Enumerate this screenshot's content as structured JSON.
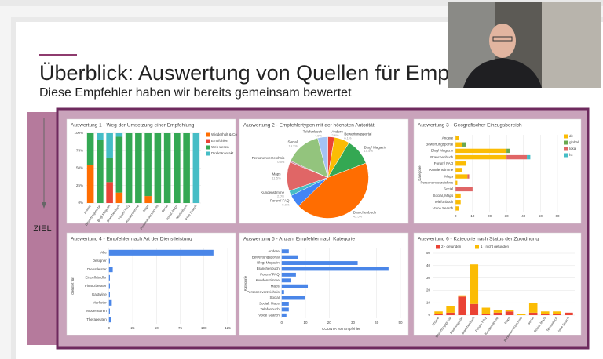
{
  "slide": {
    "title": "Überblick: Auswertung von Quellen für Empfehler",
    "subtitle": "Diese Empfehler haben wir bereits gemeinsam bewertet",
    "side_label": "ZIEL"
  },
  "chart_data": [
    {
      "type": "bar",
      "orientation": "vertical",
      "stacked": true,
      "legend": "right",
      "grid": true,
      "title": "Auswertung 1 - Weg der Umsetzung einer Empfehlung",
      "categories": [
        "Andere",
        "Bewertungsportal",
        "Blog/ Magazin",
        "Branchenbuch",
        "Forum/ FAQ",
        "Kundenstimme",
        "Maps",
        "Personenverzeichnis",
        "Social",
        "Social, Maps",
        "Telefonbuch",
        "Voice Search"
      ],
      "series": [
        {
          "name": "Wiederholt & Co",
          "color": "#ff6d01",
          "values": [
            55,
            0,
            0,
            15,
            0,
            0,
            10,
            0,
            0,
            0,
            0,
            0
          ]
        },
        {
          "name": "Empfohlen",
          "color": "#ea4335",
          "values": [
            0,
            0,
            30,
            0,
            0,
            0,
            0,
            0,
            0,
            0,
            0,
            0
          ]
        },
        {
          "name": "Web Lesen",
          "color": "#34a853",
          "values": [
            45,
            90,
            35,
            80,
            100,
            100,
            90,
            100,
            100,
            100,
            100,
            0
          ]
        },
        {
          "name": "Direkt Kontakt",
          "color": "#46bdc6",
          "values": [
            0,
            10,
            35,
            5,
            0,
            0,
            0,
            0,
            0,
            0,
            0,
            100
          ]
        }
      ],
      "ylim": [
        0,
        100
      ],
      "yticks": [
        {
          "value": 0,
          "label": "0%"
        },
        {
          "value": 25,
          "label": "25%"
        },
        {
          "value": 50,
          "label": "50%"
        },
        {
          "value": 75,
          "label": "75%"
        },
        {
          "value": 100,
          "label": "100%"
        }
      ]
    },
    {
      "type": "pie",
      "title": "Auswertung 2 - Empfehlertypen mit der höchsten Autorität",
      "categories": [
        "Andere",
        "Bewertungsportal",
        "Blog/ Magazin",
        "Branchenbuch",
        "Forum/ FAQ",
        "Kundenstimme",
        "Maps",
        "Personenverzeichnis",
        "Social",
        "Telefonbuch"
      ],
      "values": [
        2.6,
        6.1,
        10.5,
        43.5,
        5.0,
        2.0,
        11.5,
        0.5,
        14.3,
        4.0
      ],
      "value_labels": [
        "2.6%",
        "6.1%",
        "10.5%",
        "43.5%",
        "5.0%",
        "2.0%",
        "11.5%",
        "0.5%",
        "14.3%",
        "4.0%"
      ],
      "colors": [
        "#ea4335",
        "#fbbc04",
        "#34a853",
        "#ff6d01",
        "#4285f4",
        "#46bdc6",
        "#e06666",
        "#c27ba0",
        "#93c47d",
        "#a4c2f4"
      ]
    },
    {
      "type": "bar",
      "orientation": "horizontal",
      "stacked": true,
      "legend": "right",
      "grid": true,
      "title": "Auswertung 3 - Geografischer Einzugsbereich",
      "ylabel": "Kategorie",
      "categories": [
        "Andere",
        "Bewertungsportal",
        "Blog/ Magazin",
        "Branchenbuch",
        "Forum/ FAQ",
        "Kundenstimme",
        "Maps",
        "Personenverzeichnis",
        "Social",
        "Social, Maps",
        "Telefonbuch",
        "Voice Search"
      ],
      "series": [
        {
          "name": "de",
          "color": "#fbbc04",
          "values": [
            2,
            4,
            30,
            30,
            6,
            4,
            7,
            1,
            0,
            3,
            3,
            2
          ]
        },
        {
          "name": "global",
          "color": "#6aa84f",
          "values": [
            0,
            2,
            2,
            0,
            0,
            0,
            0,
            0,
            0,
            0,
            0,
            0
          ]
        },
        {
          "name": "lokal",
          "color": "#e06666",
          "values": [
            0,
            0,
            0,
            12,
            0,
            0,
            1,
            0,
            10,
            0,
            0,
            0
          ]
        },
        {
          "name": "hz",
          "color": "#46bdc6",
          "values": [
            0,
            0,
            0,
            2,
            0,
            0,
            0,
            0,
            0,
            0,
            0,
            0
          ]
        }
      ],
      "xlim": [
        0,
        60
      ],
      "xticks": [
        0,
        10,
        20,
        30,
        40,
        50,
        60
      ]
    },
    {
      "type": "bar",
      "orientation": "horizontal",
      "grid": true,
      "color": "#4a86e8",
      "title": "Auswertung 4 - Empfehler nach Art der Dienstleistung",
      "ylabel": "Gelistet für",
      "categories": [
        "Alle",
        "Designer",
        "Dienstleister",
        "Einzelhändler",
        "Finanzberater",
        "Gastwirte",
        "Marketer",
        "Moderatoren",
        "Therapeuten"
      ],
      "values": [
        110,
        1,
        4,
        1,
        1,
        1,
        3,
        1,
        2
      ],
      "xlim": [
        0,
        125
      ],
      "xticks": [
        0,
        25,
        50,
        75,
        100,
        125
      ]
    },
    {
      "type": "bar",
      "orientation": "horizontal",
      "grid": true,
      "color": "#4a86e8",
      "title": "Auswertung 5 - Anzahl Empfehler nach Kategorie",
      "xlabel": "COUNTA von Empfehler",
      "ylabel": "Kategorie",
      "categories": [
        "Andere",
        "Bewertungsportal",
        "Blog/ Magazin",
        "Branchenbuch",
        "Forum/ FAQ",
        "Kundenstimme",
        "Maps",
        "Personenverzeichnis",
        "Social",
        "Social, Maps",
        "Telefonbuch",
        "Voice Search"
      ],
      "values": [
        3,
        7,
        32,
        45,
        6,
        4,
        11,
        1,
        10,
        3,
        3,
        2
      ],
      "xlim": [
        0,
        50
      ],
      "xticks": [
        0,
        10,
        20,
        30,
        40,
        50
      ]
    },
    {
      "type": "bar",
      "orientation": "vertical",
      "stacked": true,
      "legend": "top",
      "grid": true,
      "title": "Auswertung 6 - Kategorie nach Status der Zuordnung",
      "categories": [
        "Andere",
        "Bewertungsportal",
        "Blog/ Magazin",
        "Branchenbuch",
        "Forum/ FAQ",
        "Kundenstimme",
        "Maps",
        "Personenverzeichnis",
        "Social",
        "Social, Maps",
        "Telefonbuch",
        "Voice Search"
      ],
      "series": [
        {
          "name": "2 - gefunden",
          "color": "#ea4335",
          "values": [
            1,
            2,
            15,
            9,
            1,
            2,
            3,
            0,
            2,
            1,
            1,
            2
          ]
        },
        {
          "name": "1 - nicht gefunden",
          "color": "#fbbc04",
          "values": [
            2,
            5,
            1,
            32,
            5,
            2,
            1,
            1,
            8,
            2,
            2,
            0
          ]
        }
      ],
      "ylim": [
        0,
        50
      ],
      "yticks": [
        0,
        10,
        20,
        30,
        40,
        50
      ]
    }
  ]
}
